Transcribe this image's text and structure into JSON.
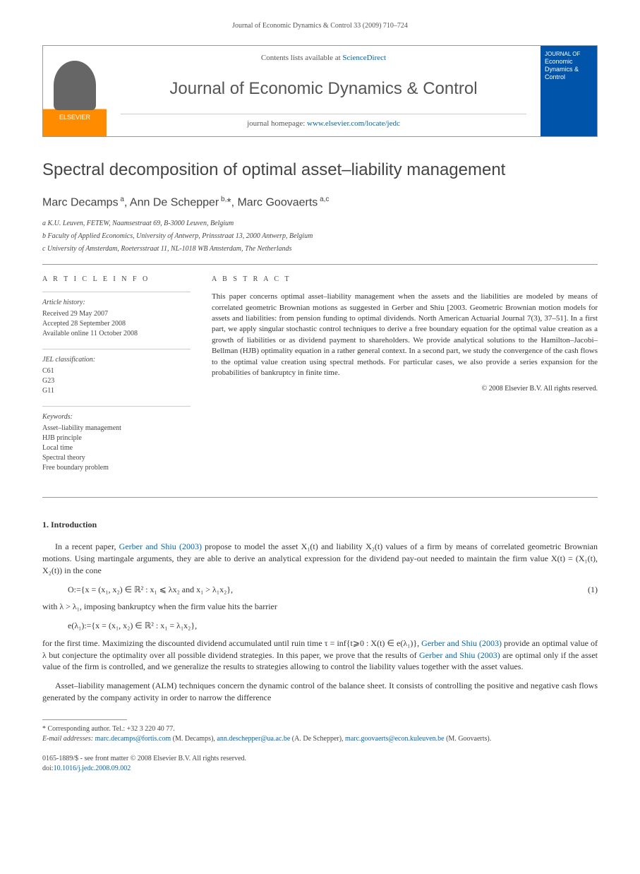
{
  "running_head": "Journal of Economic Dynamics & Control 33 (2009) 710–724",
  "header": {
    "contents_prefix": "Contents lists available at ",
    "contents_link": "ScienceDirect",
    "journal_title": "Journal of Economic Dynamics & Control",
    "homepage_prefix": "journal homepage: ",
    "homepage_link": "www.elsevier.com/locate/jedc",
    "elsevier_label": "ELSEVIER",
    "cover_label_1": "JOURNAL OF",
    "cover_label_2": "Economic Dynamics & Control"
  },
  "article": {
    "title": "Spectral decomposition of optimal asset–liability management",
    "authors_html": "Marc Decamps<sup> a</sup>, Ann De Schepper<sup> b,</sup>*, Marc Goovaerts<sup> a,c</sup>",
    "affiliations": [
      "a K.U. Leuven, FETEW, Naamsestraat 69, B-3000 Leuven, Belgium",
      "b Faculty of Applied Economics, University of Antwerp, Prinsstraat 13, 2000 Antwerp, Belgium",
      "c University of Amsterdam, Roetersstraat 11, NL-1018 WB Amsterdam, The Netherlands"
    ]
  },
  "info": {
    "heading": "A R T I C L E   I N F O",
    "history_label": "Article history:",
    "history": [
      "Received 29 May 2007",
      "Accepted 28 September 2008",
      "Available online 11 October 2008"
    ],
    "jel_label": "JEL classification:",
    "jel": [
      "C61",
      "G23",
      "G11"
    ],
    "keywords_label": "Keywords:",
    "keywords": [
      "Asset–liability management",
      "HJB principle",
      "Local time",
      "Spectral theory",
      "Free boundary problem"
    ]
  },
  "abstract": {
    "heading": "A B S T R A C T",
    "text": "This paper concerns optimal asset–liability management when the assets and the liabilities are modeled by means of correlated geometric Brownian motions as suggested in Gerber and Shiu [2003. Geometric Brownian motion models for assets and liabilities: from pension funding to optimal dividends. North American Actuarial Journal 7(3), 37–51]. In a first part, we apply singular stochastic control techniques to derive a free boundary equation for the optimal value creation as a growth of liabilities or as dividend payment to shareholders. We provide analytical solutions to the Hamilton–Jacobi–Bellman (HJB) optimality equation in a rather general context. In a second part, we study the convergence of the cash flows to the optimal value creation using spectral methods. For particular cases, we also provide a series expansion for the probabilities of bankruptcy in finite time.",
    "copyright": "© 2008 Elsevier B.V. All rights reserved."
  },
  "body": {
    "section1_heading": "1.  Introduction",
    "para1_a": "In a recent paper, ",
    "para1_ref1": "Gerber and Shiu (2003)",
    "para1_b": " propose to model the asset X₁(t) and liability X₂(t) values of a firm by means of correlated geometric Brownian motions. Using martingale arguments, they are able to derive an analytical expression for the dividend pay-out needed to maintain the firm value X(t) = (X₁(t), X₂(t)) in the cone",
    "eq1": "O:={x = (x₁, x₂) ∈ ℝ² : x₁ ⩽ λx₂  and  x₁ > λ₁x₂},",
    "eq1_num": "(1)",
    "para2": "with λ > λ₁, imposing bankruptcy when the firm value hits the barrier",
    "eq2": "e(λ₁):={x = (x₁, x₂) ∈ ℝ² : x₁ = λ₁x₂},",
    "para3_a": "for the first time. Maximizing the discounted dividend accumulated until ruin time τ = inf{t⩾0 : X(t) ∈ e(λ₁)}, ",
    "para3_ref1": "Gerber and Shiu (2003)",
    "para3_b": " provide an optimal value of λ but conjecture the optimality over all possible dividend strategies. In this paper, we prove that the results of ",
    "para3_ref2": "Gerber and Shiu (2003)",
    "para3_c": " are optimal only if the asset value of the firm is controlled, and we generalize the results to strategies allowing to control the liability values together with the asset values.",
    "para4": "Asset–liability management (ALM) techniques concern the dynamic control of the balance sheet. It consists of controlling the positive and negative cash flows generated by the company activity in order to narrow the difference"
  },
  "footnotes": {
    "corr": "* Corresponding author. Tel.: +32 3 220 40 77.",
    "email_label": "E-mail addresses: ",
    "emails": [
      {
        "addr": "marc.decamps@fortis.com",
        "who": " (M. Decamps), "
      },
      {
        "addr": "ann.deschepper@ua.ac.be",
        "who": " (A. De Schepper), "
      },
      {
        "addr": "marc.goovaerts@econ.kuleuven.be",
        "who": " (M. Goovaerts)."
      }
    ]
  },
  "bottom": {
    "issn": "0165-1889/$ - see front matter © 2008 Elsevier B.V. All rights reserved.",
    "doi_label": "doi:",
    "doi": "10.1016/j.jedc.2008.09.002"
  }
}
